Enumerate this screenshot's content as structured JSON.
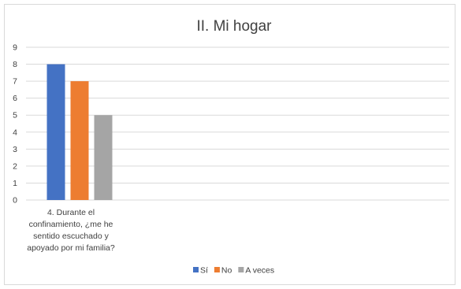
{
  "chart_data": {
    "type": "bar",
    "title": "II. Mi hogar",
    "categories": [
      "4. Durante el confinamiento, ¿me he sentido escuchado y apoyado por mi familia?"
    ],
    "category_lines": [
      [
        "4. Durante el",
        "confinamiento, ¿me he",
        "sentido escuchado y",
        "apoyado por mi familia?"
      ]
    ],
    "series": [
      {
        "name": "Sí",
        "values": [
          8
        ],
        "color": "#4472c4"
      },
      {
        "name": "No",
        "values": [
          7
        ],
        "color": "#ed7d31"
      },
      {
        "name": "A veces",
        "values": [
          5
        ],
        "color": "#a5a5a5"
      }
    ],
    "ylim": [
      0,
      9
    ],
    "yticks": [
      "0",
      "1",
      "2",
      "3",
      "4",
      "5",
      "6",
      "7",
      "8",
      "9"
    ],
    "xlabel": "",
    "ylabel": "",
    "grid": true,
    "legend_position": "bottom",
    "colors": {
      "gridline": "#d9d9d9",
      "text": "#404040",
      "border": "#d9d9d9"
    }
  }
}
